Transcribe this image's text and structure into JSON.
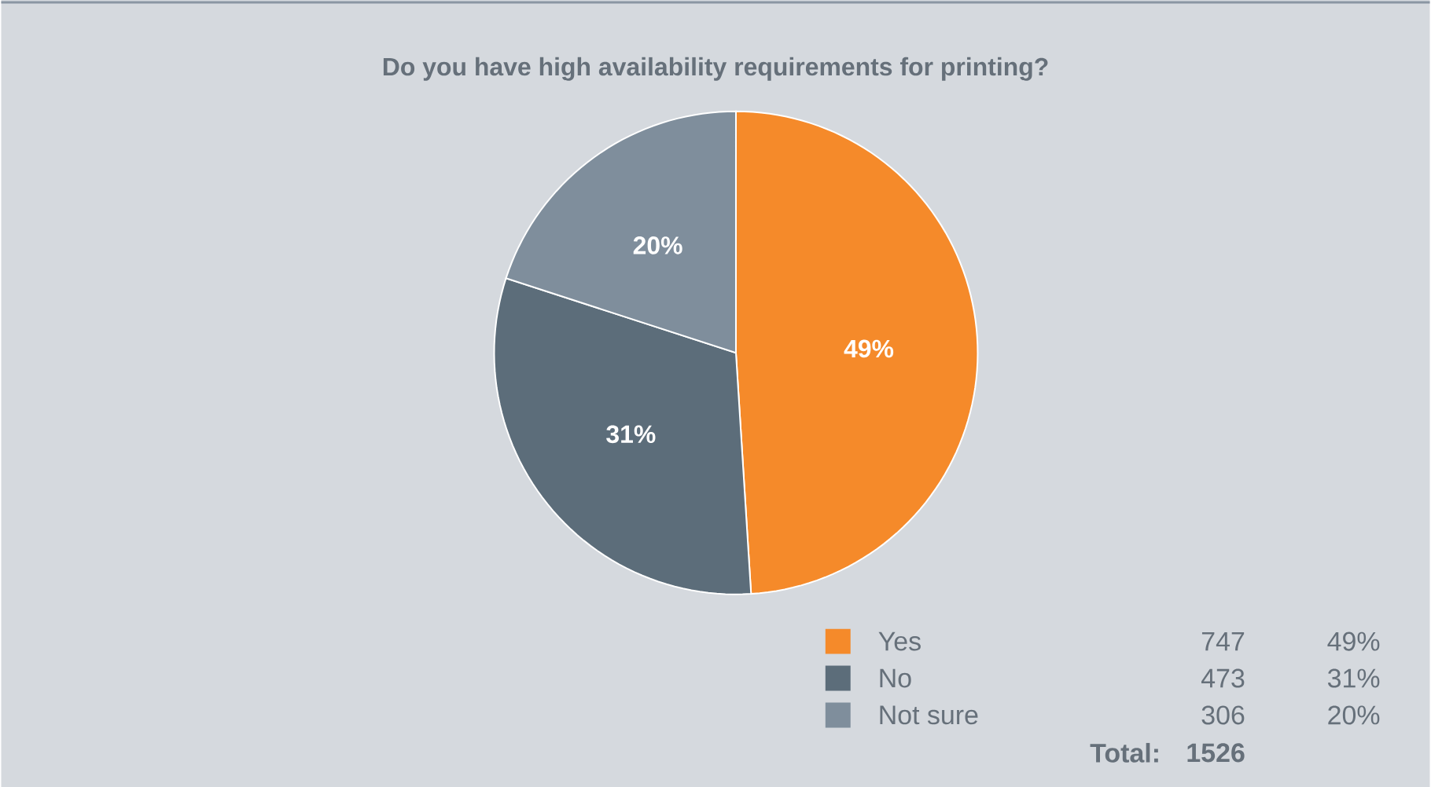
{
  "chart_data": {
    "type": "pie",
    "title": "Do you have high availability requirements for printing?",
    "categories": [
      "Yes",
      "No",
      "Not sure"
    ],
    "values": [
      49,
      31,
      20
    ],
    "colors": [
      "#f58a2a",
      "#5c6d7a",
      "#7f8e9c"
    ],
    "value_labels": [
      "49%",
      "31%",
      "20%"
    ],
    "legend": "bottom right",
    "annotations": [
      "747",
      "473",
      "306",
      "Total:",
      "1526"
    ]
  }
}
